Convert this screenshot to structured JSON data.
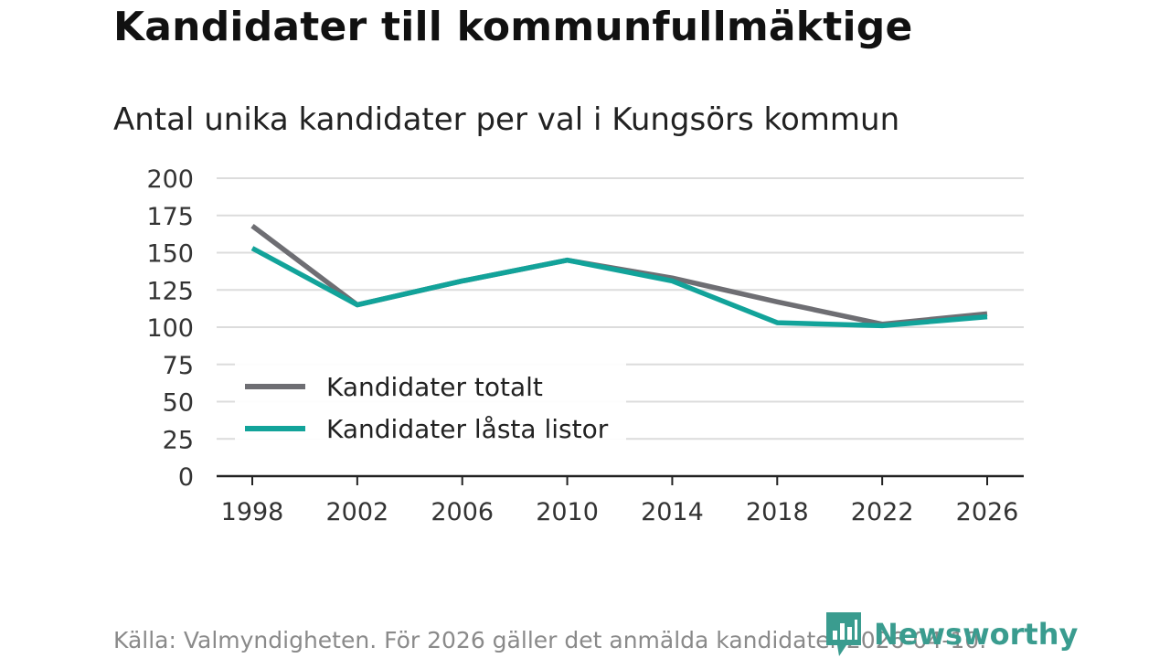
{
  "header": {
    "title": "Kandidater till kommunfullmäktige",
    "subtitle": "Antal unika kandidater per val i Kungsörs kommun"
  },
  "footer": {
    "source": "Källa: Valmyndigheten. För 2026 gäller det anmälda kandidater 2026-04-10.",
    "brand": "Newsworthy",
    "brand_icon": "newsworthy-logo-icon"
  },
  "chart_data": {
    "type": "line",
    "title": "Kandidater till kommunfullmäktige",
    "subtitle": "Antal unika kandidater per val i Kungsörs kommun",
    "xlabel": "",
    "ylabel": "",
    "x": [
      1998,
      2002,
      2006,
      2010,
      2014,
      2018,
      2022,
      2026
    ],
    "ylim": [
      0,
      200
    ],
    "yticks": [
      0,
      25,
      50,
      75,
      100,
      125,
      150,
      175,
      200
    ],
    "grid": true,
    "legend_position": "lower-left",
    "series": [
      {
        "name": "Kandidater totalt",
        "color": "#6e6e73",
        "values": [
          168,
          115,
          131,
          145,
          133,
          117,
          102,
          109
        ]
      },
      {
        "name": "Kandidater låsta listor",
        "color": "#12a39a",
        "values": [
          153,
          115,
          131,
          145,
          131,
          103,
          101,
          107
        ]
      }
    ]
  }
}
